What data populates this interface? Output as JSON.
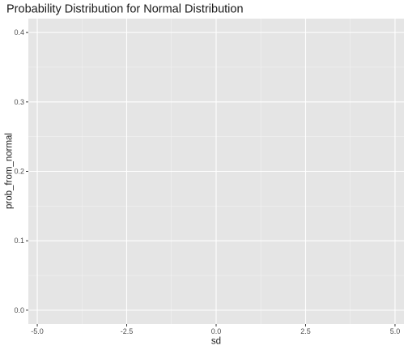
{
  "chart_data": {
    "type": "line",
    "title": "Probability Distribution for Normal Distribution",
    "xlabel": "sd",
    "ylabel": "prob_from_normal",
    "xlim": [
      -5.25,
      5.25
    ],
    "ylim": [
      -0.02,
      0.42
    ],
    "x_ticks": [
      -5.0,
      -2.5,
      0.0,
      2.5,
      5.0
    ],
    "x_tick_labels": [
      "-5.0",
      "-2.5",
      "0.0",
      "2.5",
      "5.0"
    ],
    "y_ticks": [
      0.0,
      0.1,
      0.2,
      0.3,
      0.4
    ],
    "y_tick_labels": [
      "0.0",
      "0.1",
      "0.2",
      "0.3",
      "0.4"
    ],
    "grid": true,
    "series": []
  },
  "colors": {
    "panel_background": "#e5e5e5",
    "grid_major": "#ffffff",
    "grid_minor": "#f2f2f2",
    "tick_mark": "#333333",
    "tick_label": "#4d4d4d",
    "text": "#1a1a1a"
  }
}
